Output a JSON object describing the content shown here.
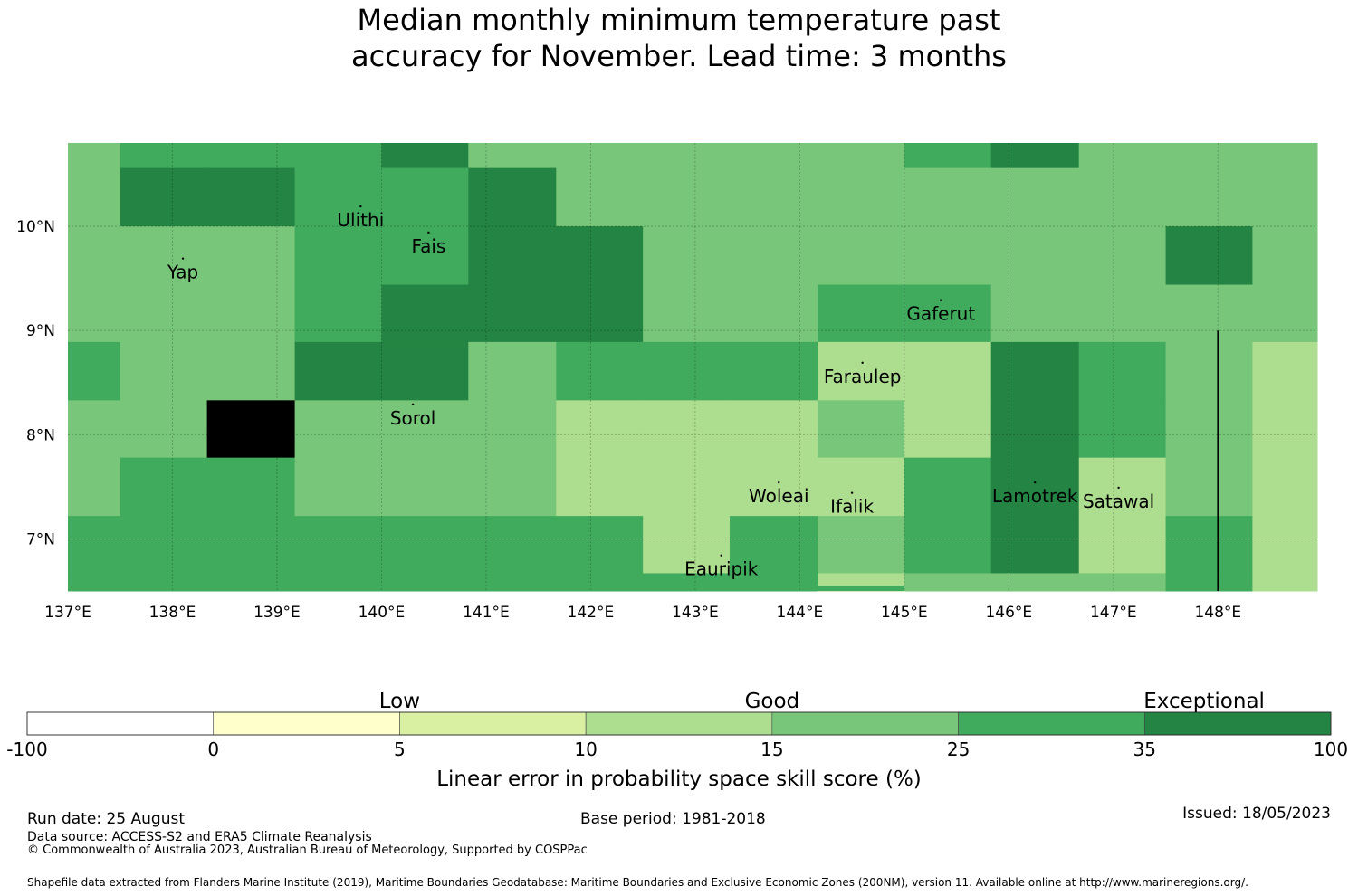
{
  "title": {
    "line1": "Median monthly minimum temperature past",
    "line2": "accuracy for November. Lead time: 3 months"
  },
  "map": {
    "lon_range": [
      137.0,
      148.95
    ],
    "lat_range": [
      6.5,
      10.8
    ],
    "x_ticks": [
      {
        "lon": 137,
        "label": "137°E"
      },
      {
        "lon": 138,
        "label": "138°E"
      },
      {
        "lon": 139,
        "label": "139°E"
      },
      {
        "lon": 140,
        "label": "140°E"
      },
      {
        "lon": 141,
        "label": "141°E"
      },
      {
        "lon": 142,
        "label": "142°E"
      },
      {
        "lon": 143,
        "label": "143°E"
      },
      {
        "lon": 144,
        "label": "144°E"
      },
      {
        "lon": 145,
        "label": "145°E"
      },
      {
        "lon": 146,
        "label": "146°E"
      },
      {
        "lon": 147,
        "label": "147°E"
      },
      {
        "lon": 148,
        "label": "148°E"
      }
    ],
    "y_ticks": [
      {
        "lat": 10,
        "label": "10°N"
      },
      {
        "lat": 9,
        "label": "9°N"
      },
      {
        "lat": 8,
        "label": "8°N"
      },
      {
        "lat": 7,
        "label": "7°N"
      }
    ],
    "col_lon_edges": [
      137.0,
      137.5,
      138.33,
      139.17,
      140.0,
      140.83,
      141.67,
      142.5,
      143.33,
      144.17,
      145.0,
      145.83,
      146.67,
      147.5,
      148.33,
      148.95
    ],
    "row_lat_edges": [
      10.8,
      10.56,
      10.0,
      9.44,
      8.89,
      8.33,
      7.78,
      7.22,
      6.67,
      6.5
    ],
    "grid_class_codes": [
      "455564444456444",
      "466556444444444",
      "444556644444464",
      "444566644554444",
      "544664555336543",
      "447444333436543",
      "455444333356343",
      "555555535456353",
      "555555555344453"
    ],
    "places": [
      {
        "name": "Yap",
        "lon": 138.1,
        "lat": 9.5
      },
      {
        "name": "Ulithi",
        "lon": 139.8,
        "lat": 10.0
      },
      {
        "name": "Fais",
        "lon": 140.45,
        "lat": 9.75
      },
      {
        "name": "Gaferut",
        "lon": 145.35,
        "lat": 9.1
      },
      {
        "name": "Faraulep",
        "lon": 144.6,
        "lat": 8.5
      },
      {
        "name": "Sorol",
        "lon": 140.3,
        "lat": 8.1
      },
      {
        "name": "Woleai",
        "lon": 143.8,
        "lat": 7.35
      },
      {
        "name": "Ifalik",
        "lon": 144.5,
        "lat": 7.25
      },
      {
        "name": "Lamotrek",
        "lon": 146.25,
        "lat": 7.35
      },
      {
        "name": "Satawal",
        "lon": 147.05,
        "lat": 7.3
      },
      {
        "name": "Eauripik",
        "lon": 143.25,
        "lat": 6.65
      }
    ],
    "boundary_line": {
      "lon": 148.0,
      "lat_from": 6.5,
      "lat_to": 9.0
    }
  },
  "legend": {
    "categories": [
      {
        "label": "Low",
        "value": 5
      },
      {
        "label": "Good",
        "value": 15
      },
      {
        "label": "Exceptional",
        "value": 35
      }
    ],
    "tick_labels": [
      "-100",
      "0",
      "5",
      "10",
      "15",
      "25",
      "35",
      "100"
    ],
    "colors": [
      "#ffffff",
      "#ffffcc",
      "#d9f0a3",
      "#addd8e",
      "#78c679",
      "#41ab5d",
      "#238443"
    ],
    "title": "Linear error in probability space skill score (%)"
  },
  "footer": {
    "run_date": "Run date: 25 August",
    "base_period": "Base period: 1981-2018",
    "issued": "Issued: 18/05/2023",
    "data_source": "Data source: ACCESS-S2 and ERA5 Climate Reanalysis",
    "copyright": "© Commonwealth of Australia 2023, Australian Bureau of Meteorology, Supported by COSPPac",
    "shapefile": "Shapefile data extracted from Flanders Marine Institute (2019), Maritime Boundaries Geodatabase: Maritime Boundaries and Exclusive Economic Zones (200NM), version 11. Available online at http://www.marineregions.org/."
  }
}
